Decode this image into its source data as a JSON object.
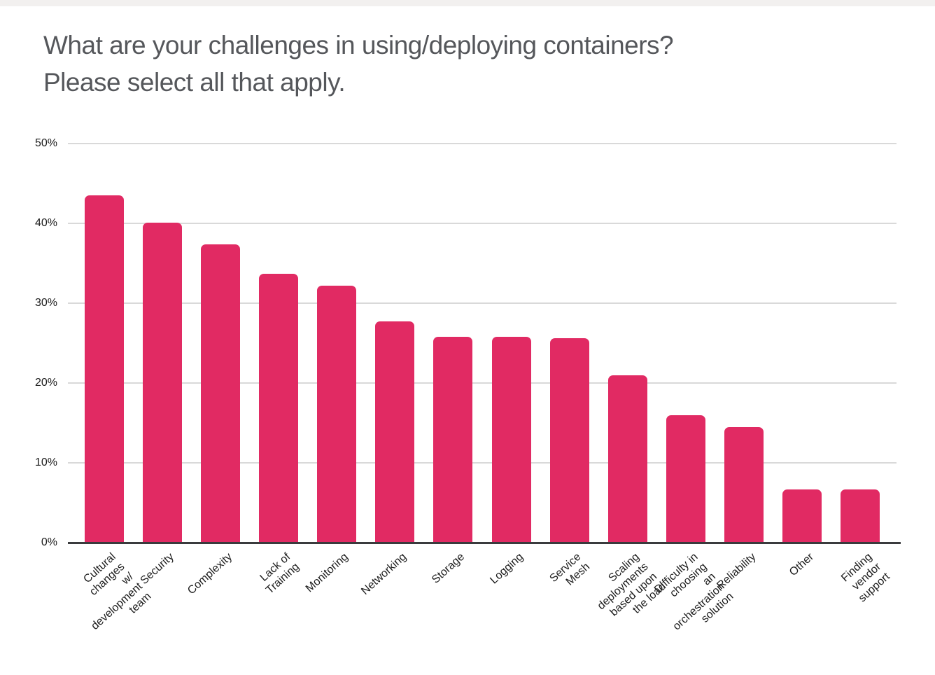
{
  "chart_data": {
    "type": "bar",
    "title": "What are your challenges in using/deploying containers? Please select all that apply.",
    "title_lines": [
      "What are your challenges in using/deploying containers?",
      "Please select all that apply."
    ],
    "categories": [
      "Cultural changes\nw/ development team",
      "Security",
      "Complexity",
      "Lack of Training",
      "Monitoring",
      "Networking",
      "Storage",
      "Logging",
      "Service Mesh",
      "Scaling deployments\nbased upon the load",
      "Difficulty in choosing\nan orchestration solution",
      "Reliability",
      "Other",
      "Finding vendor\nsupport"
    ],
    "values": [
      43.5,
      40.1,
      37.4,
      33.7,
      32.2,
      27.7,
      25.8,
      25.8,
      25.6,
      21.0,
      16.0,
      14.5,
      6.7,
      6.7
    ],
    "xlabel": "",
    "ylabel": "",
    "ylim": [
      0,
      50
    ],
    "y_ticks": [
      "0%",
      "10%",
      "20%",
      "30%",
      "40%",
      "50%"
    ],
    "grid": true,
    "legend": "none",
    "bar_color": "#E12A63"
  },
  "colors": {
    "bar": "#E12A63",
    "title_text": "#55575B",
    "axis_text": "#1C1C1C",
    "gridline": "#D9D9D9",
    "baseline": "#3A3B3D",
    "top_strip": "#F2F0EF"
  }
}
